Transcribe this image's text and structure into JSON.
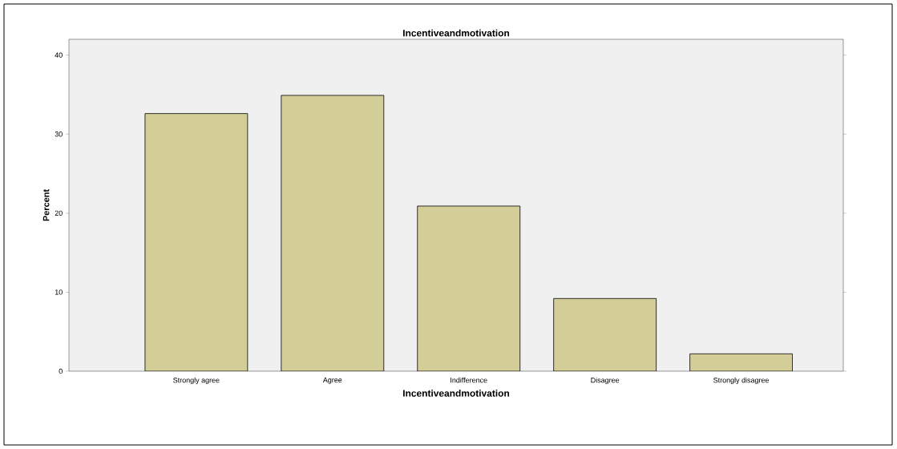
{
  "chart_data": {
    "type": "bar",
    "title": "Incentiveandmotivation",
    "xlabel": "Incentiveandmotivation",
    "ylabel": "Percent",
    "categories": [
      "Strongly agree",
      "Agree",
      "Indifference",
      "Disagree",
      "Strongly disagree"
    ],
    "values": [
      32.6,
      34.9,
      20.9,
      9.2,
      2.2
    ],
    "color": "#d3ce97",
    "ylim": [
      0,
      42
    ],
    "yticks": [
      0,
      10,
      20,
      30,
      40
    ],
    "grid": false
  }
}
